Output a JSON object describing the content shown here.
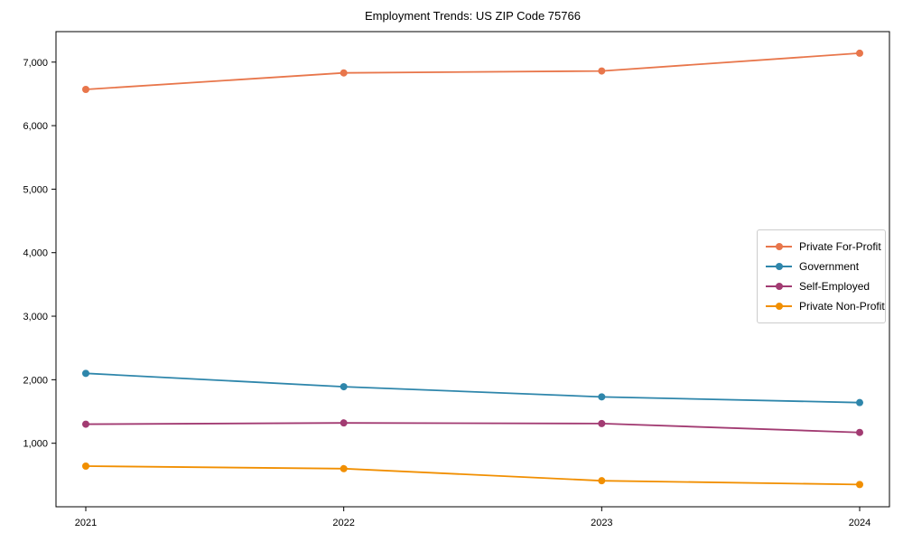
{
  "chart_data": {
    "type": "line",
    "title": "Employment Trends: US ZIP Code 75766",
    "xlabel": "",
    "ylabel": "",
    "x": [
      2021,
      2022,
      2023,
      2024
    ],
    "xtick_labels": [
      "2021",
      "2022",
      "2023",
      "2024"
    ],
    "ytick_values": [
      1000,
      2000,
      3000,
      4000,
      5000,
      6000,
      7000
    ],
    "ytick_labels": [
      "1,000",
      "2,000",
      "3,000",
      "4,000",
      "5,000",
      "6,000",
      "7,000"
    ],
    "ylim": [
      0,
      7480
    ],
    "grid": false,
    "legend_position": "center right",
    "frame": "full-box",
    "series": [
      {
        "name": "Private For-Profit",
        "color": "#E8764B",
        "values": [
          6570,
          6830,
          6860,
          7140
        ]
      },
      {
        "name": "Government",
        "color": "#2E86AB",
        "values": [
          2100,
          1890,
          1730,
          1640
        ]
      },
      {
        "name": "Self-Employed",
        "color": "#A23B72",
        "values": [
          1300,
          1320,
          1310,
          1170
        ]
      },
      {
        "name": "Private Non-Profit",
        "color": "#F18F01",
        "values": [
          640,
          600,
          410,
          350
        ]
      }
    ]
  }
}
